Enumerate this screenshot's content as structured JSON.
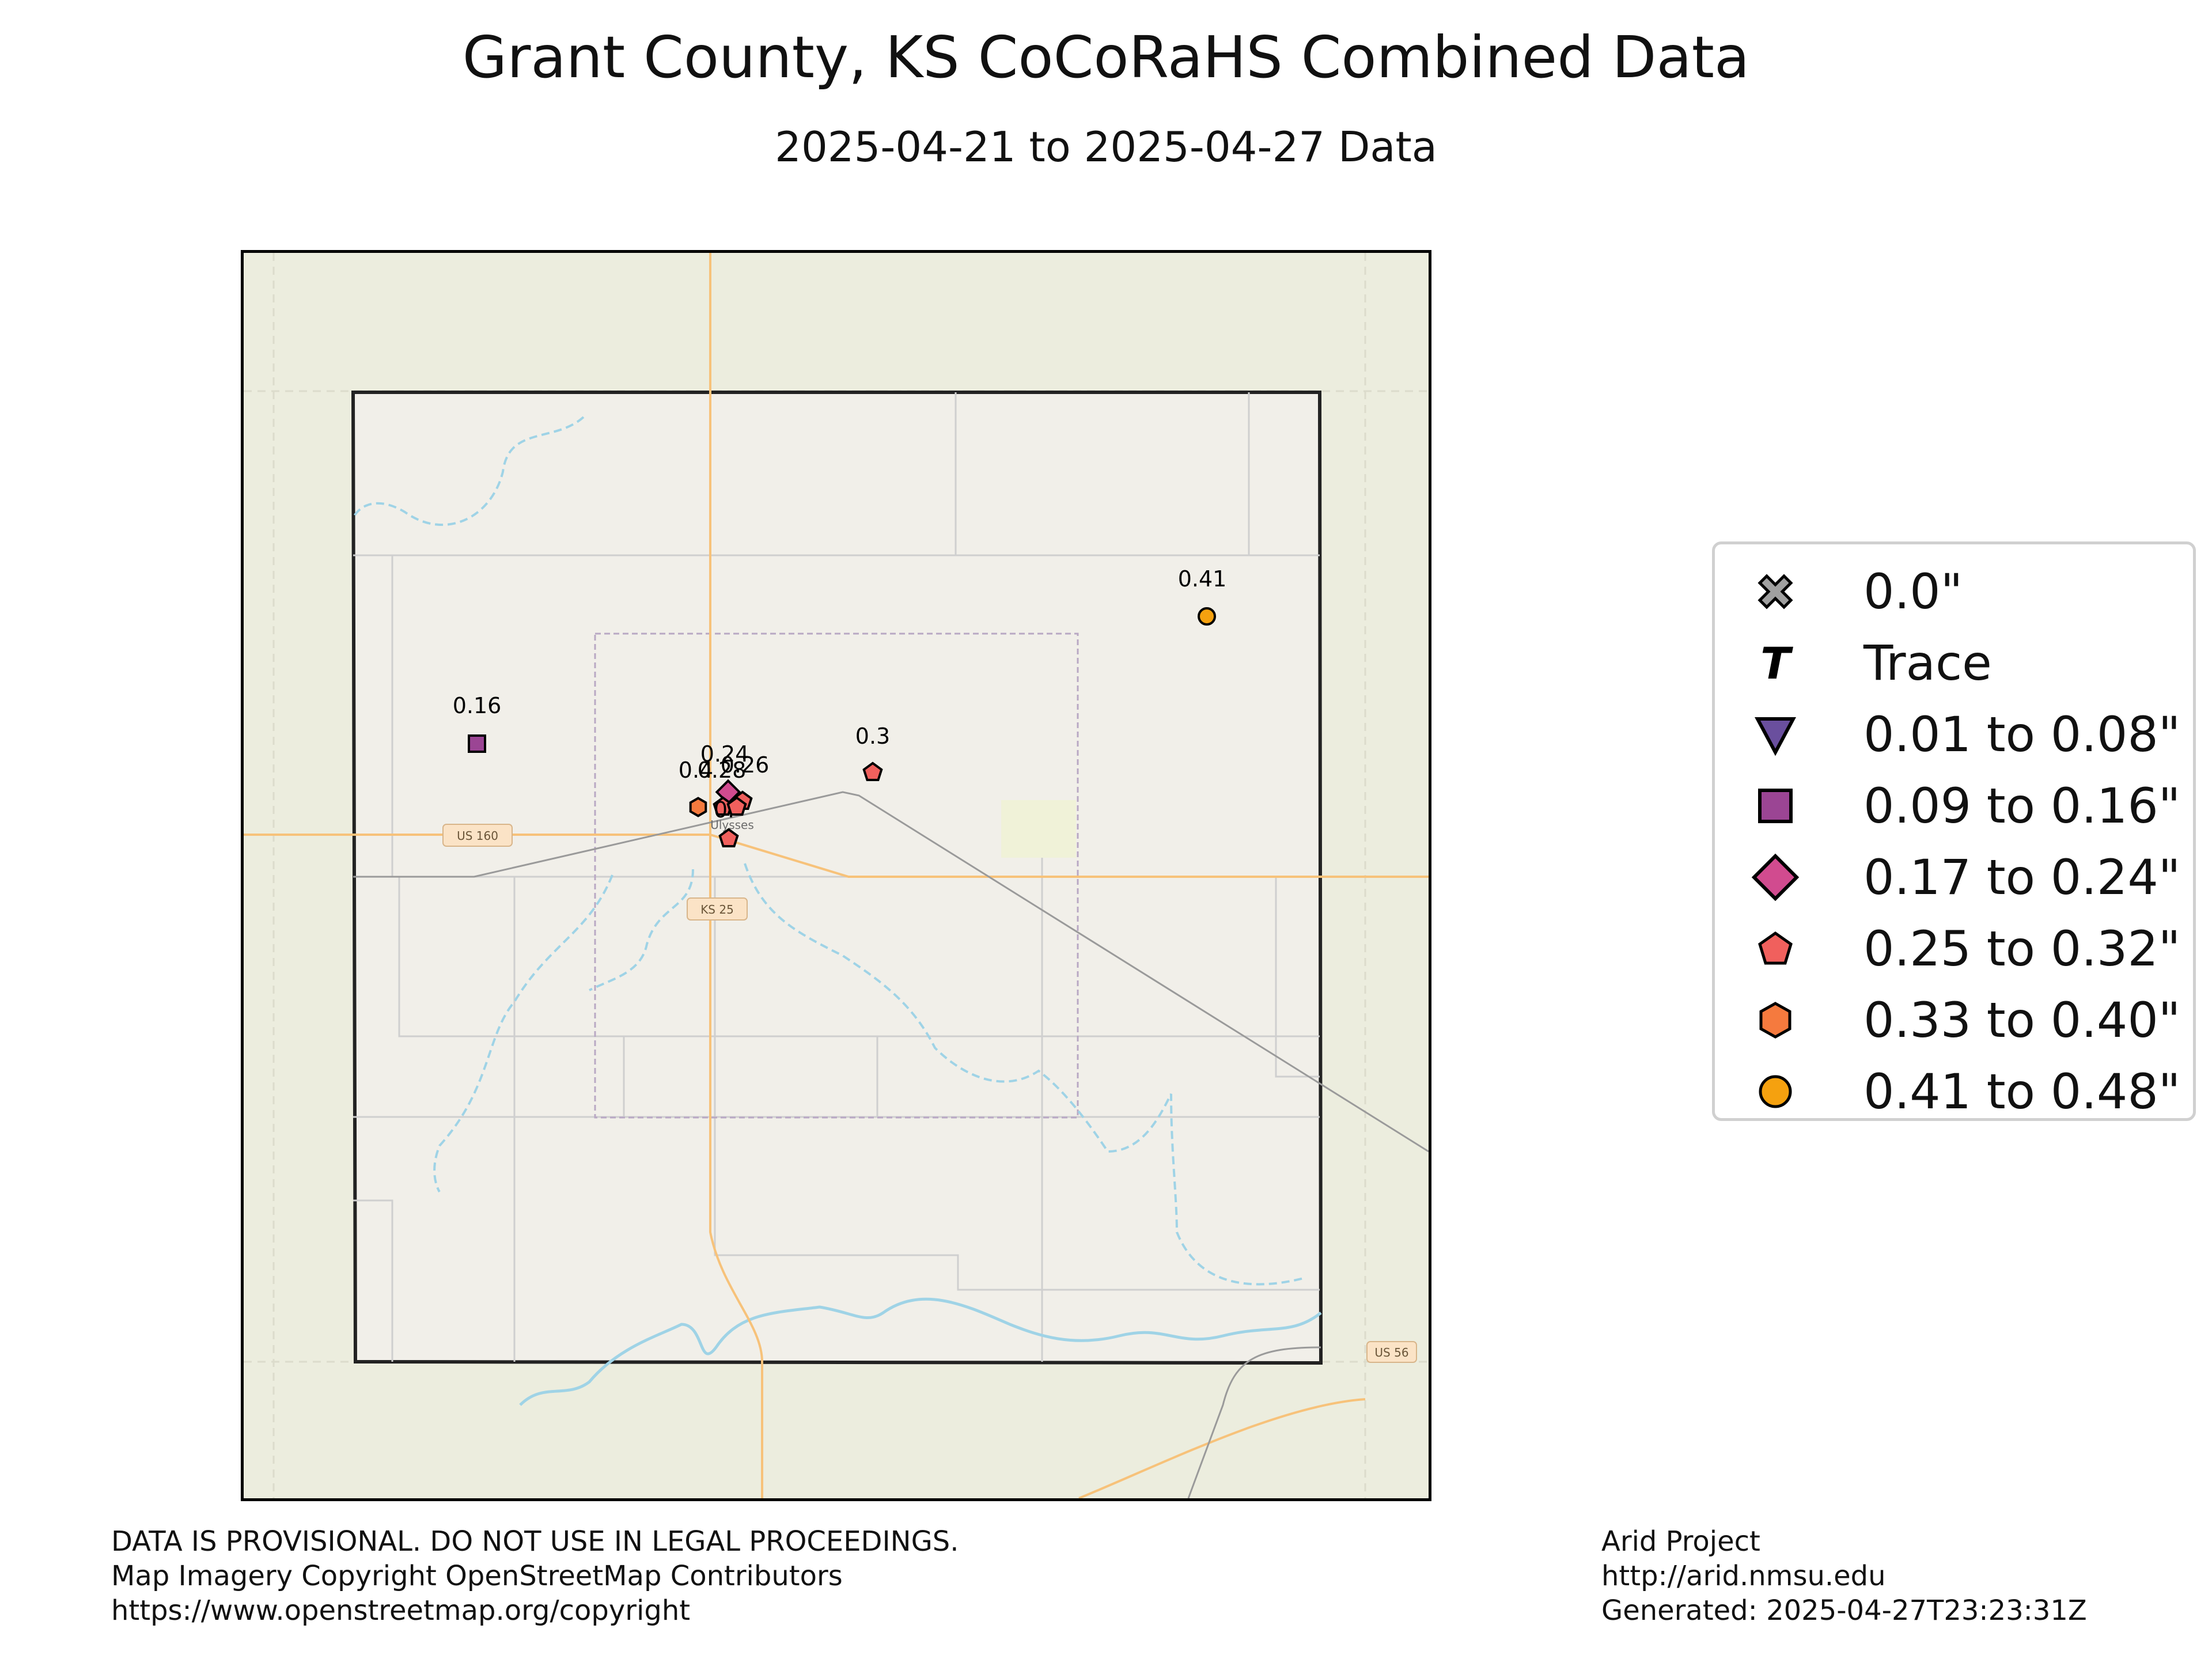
{
  "title": "Grant County, KS CoCoRaHS Combined Data",
  "subtitle": "2025-04-21 to 2025-04-27 Data",
  "map": {
    "place_labels": [
      {
        "text": "Ulysses"
      },
      {
        "text": "US 160"
      },
      {
        "text": "KS 25"
      },
      {
        "text": "US 56"
      }
    ],
    "colors": {
      "background": "#ecedde",
      "county": "#f1efe9",
      "road_major": "#f7c27a",
      "road_minor": "#cfcfcf",
      "water": "#9fd3e6",
      "rail": "#9a9a9a"
    }
  },
  "stations": [
    {
      "label": "0.41",
      "value": 0.41,
      "category": "0.41 to 0.48\""
    },
    {
      "label": "0.16",
      "value": 0.16,
      "category": "0.09 to 0.16\""
    },
    {
      "label": "0.3",
      "value": 0.3,
      "category": "0.25 to 0.32\""
    },
    {
      "label": "0.24",
      "value": 0.24,
      "category": "0.17 to 0.24\""
    },
    {
      "label": "0.26",
      "value": 0.26,
      "category": "0.25 to 0.32\""
    },
    {
      "label": "0.4",
      "value": 0.4,
      "category": "0.33 to 0.40\""
    },
    {
      "label": "0.28",
      "value": 0.28,
      "category": "0.25 to 0.32\""
    },
    {
      "label": "0.",
      "value": 0.27,
      "category": "0.25 to 0.32\""
    },
    {
      "label": "",
      "value": 0.27,
      "category": "0.25 to 0.32\""
    }
  ],
  "legend": {
    "items": [
      {
        "label": "0.0\"",
        "symbol": "x-cross-icon",
        "color": "#a0a0a0"
      },
      {
        "label": "Trace",
        "symbol": "t-letter-icon",
        "color": "#000000"
      },
      {
        "label": "0.01 to 0.08\"",
        "symbol": "triangle-down-icon",
        "color": "#6a4f9e"
      },
      {
        "label": "0.09 to 0.16\"",
        "symbol": "square-icon",
        "color": "#9b4594"
      },
      {
        "label": "0.17 to 0.24\"",
        "symbol": "diamond-icon",
        "color": "#d14b8f"
      },
      {
        "label": "0.25 to 0.32\"",
        "symbol": "pentagon-icon",
        "color": "#f0605d"
      },
      {
        "label": "0.33 to 0.40\"",
        "symbol": "hexagon-icon",
        "color": "#f57a3e"
      },
      {
        "label": "0.41 to 0.48\"",
        "symbol": "circle-icon",
        "color": "#f5a10f"
      }
    ]
  },
  "footer_left": {
    "line1": "DATA IS PROVISIONAL. DO NOT USE IN LEGAL PROCEEDINGS.",
    "line2": "Map Imagery Copyright OpenStreetMap Contributors",
    "line3": "https://www.openstreetmap.org/copyright"
  },
  "footer_right": {
    "line1": "Arid Project",
    "line2": "http://arid.nmsu.edu",
    "line3": "Generated: 2025-04-27T23:23:31Z"
  }
}
